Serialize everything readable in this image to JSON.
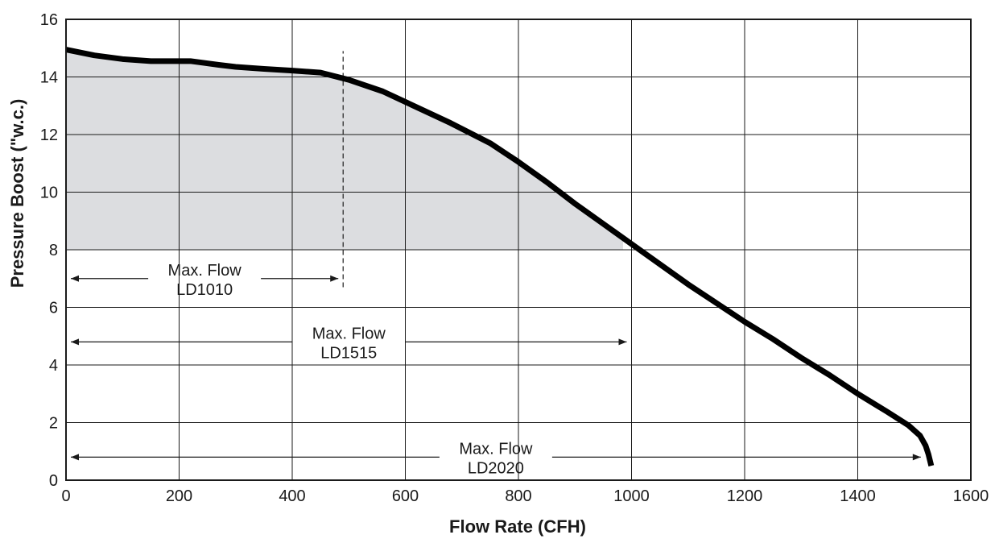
{
  "chart_data": {
    "type": "line",
    "title": "",
    "xlabel": "Flow Rate (CFH)",
    "ylabel": "Pressure Boost (\"w.c.)",
    "xlim": [
      0,
      1600
    ],
    "ylim": [
      0,
      16
    ],
    "xticks": [
      0,
      200,
      400,
      600,
      800,
      1000,
      1200,
      1400,
      1600
    ],
    "yticks": [
      0,
      2,
      4,
      6,
      8,
      10,
      12,
      14,
      16
    ],
    "grid": true,
    "line_color": "#000000",
    "shade_color": "#dcdde0",
    "series": [
      {
        "x": [
          0,
          50,
          100,
          150,
          220,
          270,
          300,
          350,
          400,
          450,
          500,
          560,
          620,
          680,
          750,
          800,
          850,
          900,
          950,
          1000,
          1050,
          1100,
          1150,
          1200,
          1250,
          1300,
          1350,
          1400,
          1450,
          1490,
          1510,
          1520,
          1525,
          1530
        ],
        "y": [
          14.95,
          14.75,
          14.62,
          14.55,
          14.55,
          14.42,
          14.35,
          14.28,
          14.22,
          14.15,
          13.9,
          13.5,
          12.95,
          12.4,
          11.7,
          11.05,
          10.35,
          9.6,
          8.9,
          8.2,
          7.5,
          6.8,
          6.15,
          5.5,
          4.9,
          4.25,
          3.65,
          3.0,
          2.4,
          1.9,
          1.55,
          1.2,
          0.9,
          0.5
        ]
      }
    ],
    "shaded_region": {
      "y_min": 8,
      "x": [
        0,
        50,
        100,
        150,
        220,
        270,
        300,
        350,
        400,
        450,
        500,
        560,
        620,
        680,
        750,
        800,
        850,
        900,
        950,
        985
      ],
      "y": [
        14.95,
        14.75,
        14.62,
        14.55,
        14.55,
        14.42,
        14.35,
        14.28,
        14.22,
        14.15,
        13.9,
        13.5,
        12.95,
        12.4,
        11.7,
        11.05,
        10.35,
        9.6,
        8.9,
        8.4
      ]
    },
    "dashed_line": {
      "x": 490,
      "y_from": 6.7,
      "y_to": 14.9
    },
    "annotations": [
      {
        "line1": "Max. Flow",
        "line2": "LD1010",
        "x_from": 0,
        "x_to": 490,
        "y": 7.0
      },
      {
        "line1": "Max. Flow",
        "line2": "LD1515",
        "x_from": 0,
        "x_to": 1000,
        "y": 4.8
      },
      {
        "line1": "Max. Flow",
        "line2": "LD2020",
        "x_from": 0,
        "x_to": 1520,
        "y": 0.8
      }
    ]
  }
}
